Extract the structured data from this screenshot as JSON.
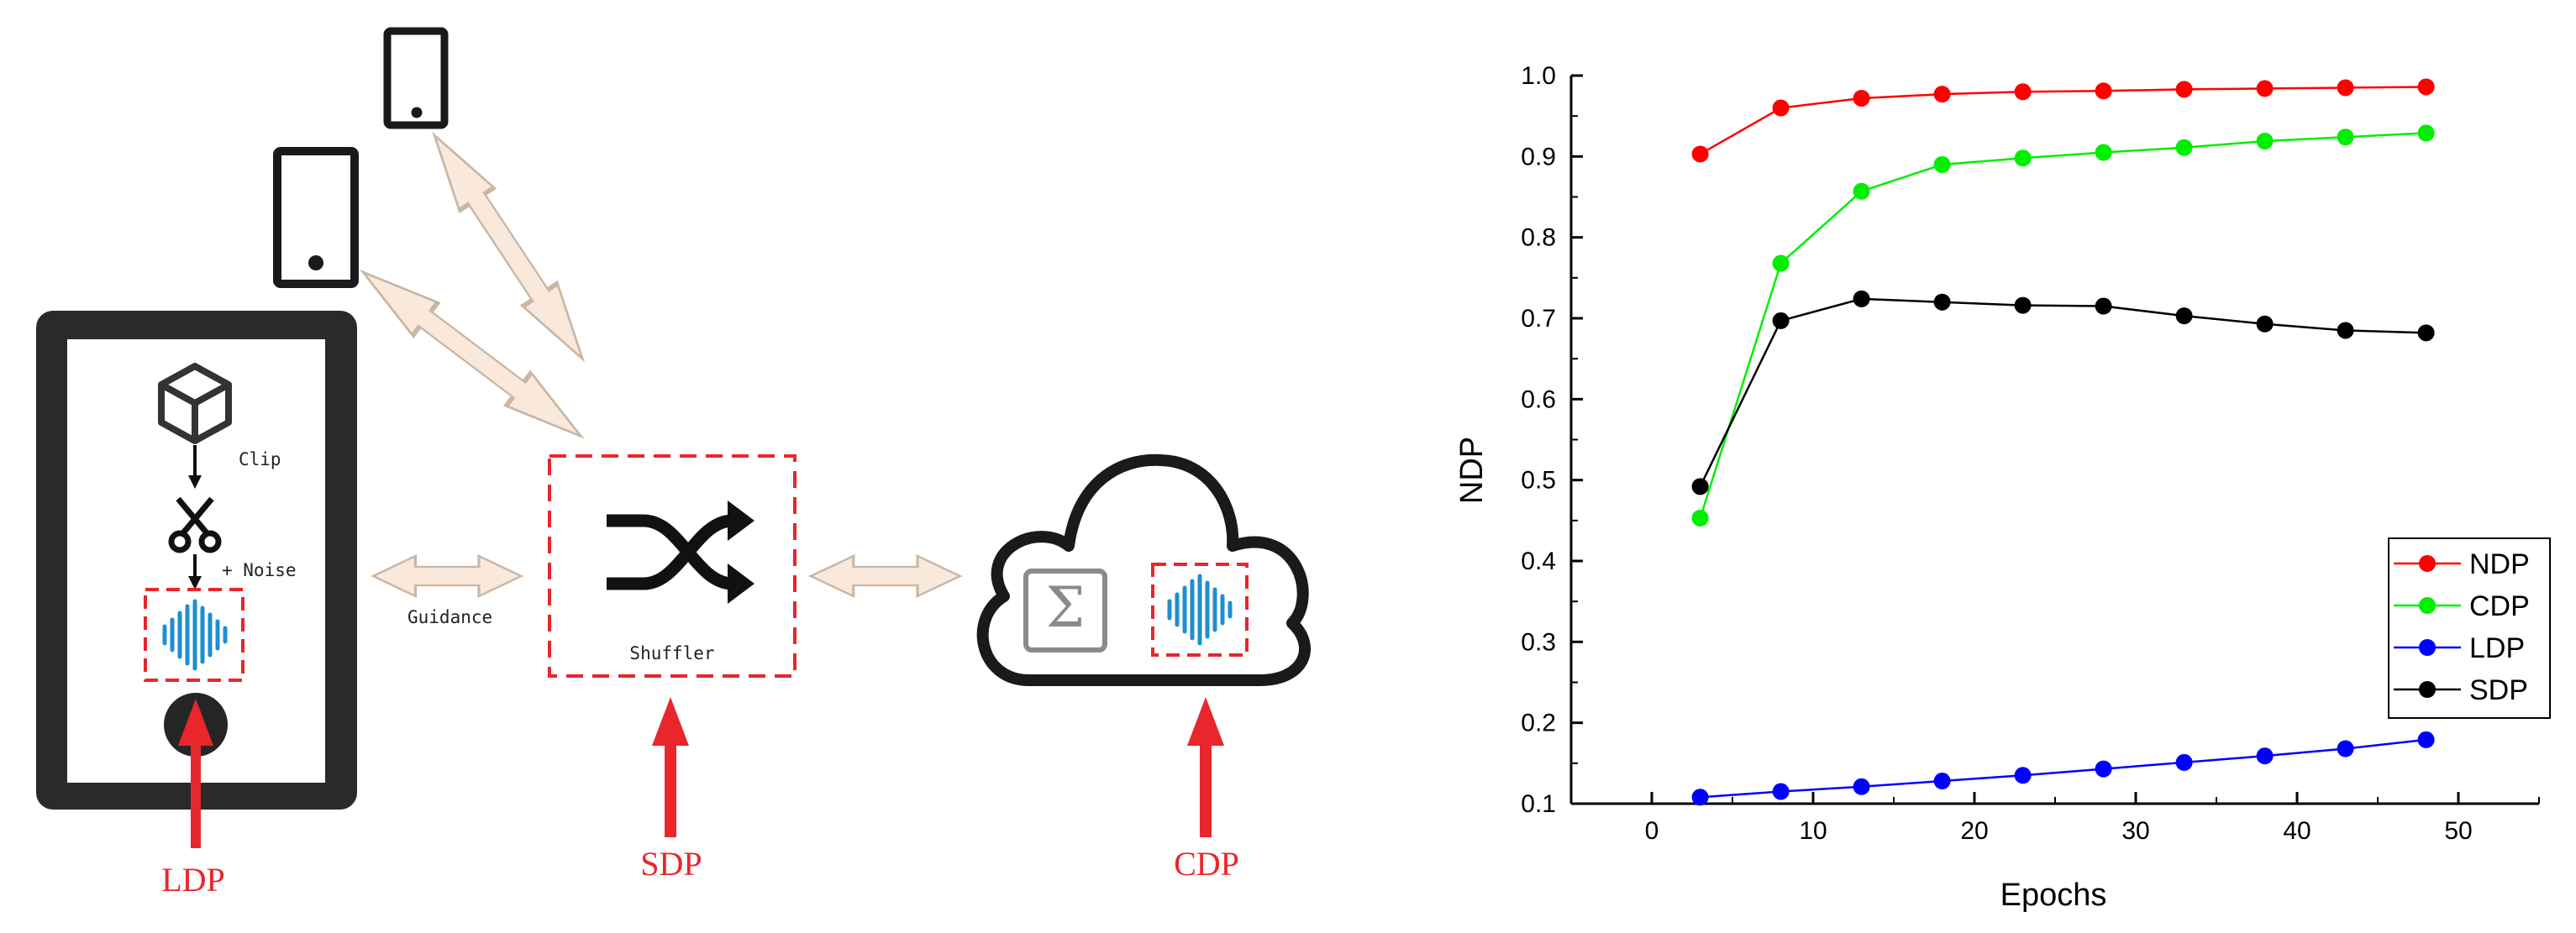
{
  "diagram": {
    "device_labels": {
      "clip": "Clip",
      "noise": "+ Noise",
      "guidance": "Guidance",
      "shuffler": "Shuffler"
    },
    "dp_labels": {
      "ldp": "LDP",
      "sdp": "SDP",
      "cdp": "CDP"
    },
    "colors": {
      "red": "#e8262c",
      "double_arrow_fill": "#fae9db",
      "double_arrow_stroke": "#c9b7a6",
      "waveform_blue": "#1d8fd0",
      "sigma_gray": "#8a8a8a",
      "black": "#1a1a1a"
    }
  },
  "chart_data": {
    "type": "line",
    "xlabel": "Epochs",
    "ylabel": "NDP",
    "xlim": [
      -5,
      55
    ],
    "ylim": [
      0.1,
      1.0
    ],
    "xticks": [
      0,
      10,
      20,
      30,
      40,
      50
    ],
    "yticks": [
      0.1,
      0.2,
      0.3,
      0.4,
      0.5,
      0.6,
      0.7,
      0.8,
      0.9,
      1.0
    ],
    "xtick_labels": [
      "0",
      "10",
      "20",
      "30",
      "40",
      "50"
    ],
    "ytick_labels": [
      "0.1",
      "0.2",
      "0.3",
      "0.4",
      "0.5",
      "0.6",
      "0.7",
      "0.8",
      "0.9",
      "1.0"
    ],
    "grid": false,
    "legend": "right",
    "x": [
      3,
      8,
      13,
      18,
      23,
      28,
      33,
      38,
      43,
      48
    ],
    "series": [
      {
        "name": "NDP",
        "color": "#ff0000",
        "values": [
          0.903,
          0.96,
          0.972,
          0.977,
          0.98,
          0.981,
          0.983,
          0.984,
          0.985,
          0.986
        ]
      },
      {
        "name": "CDP",
        "color": "#00ee00",
        "values": [
          0.453,
          0.768,
          0.857,
          0.89,
          0.898,
          0.905,
          0.911,
          0.919,
          0.924,
          0.929
        ]
      },
      {
        "name": "LDP",
        "color": "#0000ff",
        "values": [
          0.108,
          0.115,
          0.121,
          0.128,
          0.135,
          0.143,
          0.151,
          0.159,
          0.168,
          0.179
        ]
      },
      {
        "name": "SDP",
        "color": "#000000",
        "values": [
          0.492,
          0.697,
          0.724,
          0.72,
          0.716,
          0.715,
          0.703,
          0.693,
          0.685,
          0.682
        ]
      }
    ]
  }
}
